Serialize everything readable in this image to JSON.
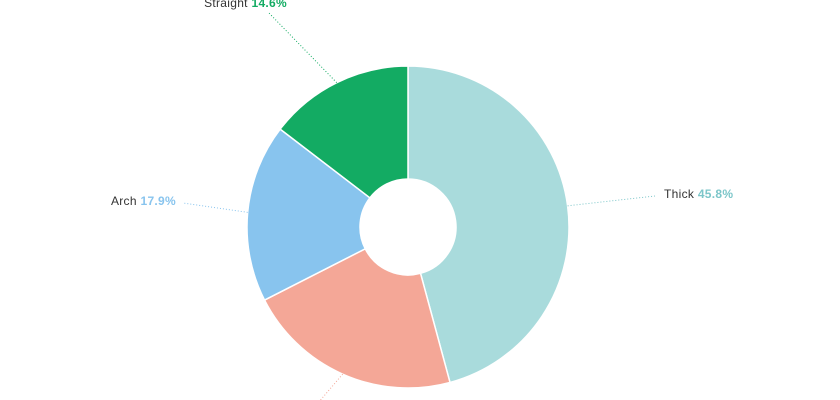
{
  "chart_data": {
    "type": "donut",
    "categories": [
      "Thick",
      null,
      "Arch",
      "Straight"
    ],
    "values": [
      45.8,
      21.7,
      17.9,
      14.6
    ],
    "value_labels": [
      "45.8%",
      null,
      "17.9%",
      "14.6%"
    ],
    "colors": [
      "#a9dbdc",
      "#f4a797",
      "#88c4ee",
      "#13ab63"
    ],
    "label_colors": [
      "#7cc6c9",
      "#f4a797",
      "#88c4ee",
      "#13ab63"
    ]
  }
}
